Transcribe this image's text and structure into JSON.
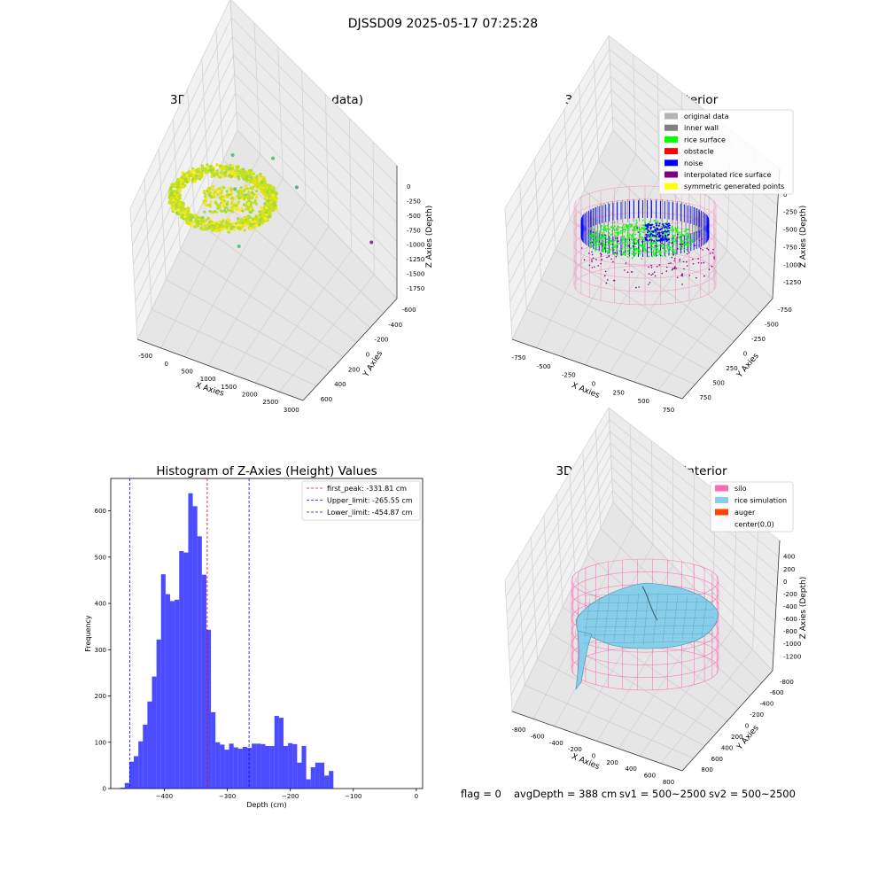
{
  "figure": {
    "suptitle": "DJSSD09 2025-05-17 07:25:28",
    "footer": {
      "flag": "flag = 0",
      "avg_depth": "avgDepth = 388 cm",
      "sv1": "sv1 = 500~2500",
      "sv2": "sv2 = 500~2500"
    }
  },
  "chart_data": [
    {
      "type": "scatter",
      "projection": "3d",
      "title": "3D Plot of Silo Interior(row data)",
      "xlabel": "X Axies",
      "ylabel": "Y Axies",
      "zlabel": "Z Axies (Depth)",
      "x_ticks": [
        "-500",
        "0",
        "500",
        "1000",
        "1500",
        "2000",
        "2500",
        "3000"
      ],
      "y_ticks": [
        "-600",
        "-400",
        "-200",
        "0",
        "200",
        "400",
        "600"
      ],
      "z_ticks": [
        "0",
        "-250",
        "-500",
        "-750",
        "-1000",
        "-1250",
        "-1500",
        "-1750"
      ],
      "xlim": [
        -600,
        3000
      ],
      "ylim": [
        -650,
        650
      ],
      "zlim": [
        -1800,
        0
      ],
      "colormap": "viridis",
      "main_cluster": {
        "description_color": "#c8e020"
      },
      "outliers": [
        {
          "x": 500,
          "y": 0,
          "z": -450,
          "color": "#5fc27d"
        },
        {
          "x": 700,
          "y": -100,
          "z": -650,
          "color": "#5fc27d"
        },
        {
          "x": 1200,
          "y": 100,
          "z": -550,
          "color": "#5fc27d"
        },
        {
          "x": 1100,
          "y": -300,
          "z": -900,
          "color": "#5fc27d"
        },
        {
          "x": 1500,
          "y": 200,
          "z": -1100,
          "color": "#4bb095"
        },
        {
          "x": 2900,
          "y": 300,
          "z": -1750,
          "color": "#7b4585"
        }
      ]
    },
    {
      "type": "scatter",
      "projection": "3d",
      "title": "3D classify of Silo Interior",
      "xlabel": "X Axies",
      "ylabel": "Y Axies",
      "zlabel": "Z Axies (Depth)",
      "x_ticks": [
        "-750",
        "-500",
        "-250",
        "0",
        "250",
        "500",
        "750"
      ],
      "y_ticks": [
        "-750",
        "-500",
        "-250",
        "0",
        "250",
        "500",
        "750"
      ],
      "z_ticks": [
        "0",
        "-250",
        "-500",
        "-750",
        "-1000",
        "-1250"
      ],
      "legend": {
        "position": "top-right",
        "entries": [
          {
            "label": "original data",
            "color": "#b3b3b3"
          },
          {
            "label": "inner wall",
            "color": "#7f7f7f"
          },
          {
            "label": "rice surface",
            "color": "#00ff00"
          },
          {
            "label": "obstacle",
            "color": "#ff0000"
          },
          {
            "label": "noise",
            "color": "#0000ff"
          },
          {
            "label": "interpolated rice surface",
            "color": "#800080"
          },
          {
            "label": "symmetric generated points",
            "color": "#ffff00"
          }
        ]
      }
    },
    {
      "type": "bar",
      "title": "Histogram of Z-Axies (Height) Values",
      "xlabel": "Depth (cm)",
      "ylabel": "Frequency",
      "xlim": [
        -485,
        10
      ],
      "ylim": [
        0,
        670
      ],
      "x_ticks": [
        -400,
        -300,
        -200,
        -100,
        0
      ],
      "y_ticks": [
        0,
        100,
        200,
        300,
        400,
        500,
        600
      ],
      "bar_color": "#0000ff",
      "bar_alpha": 0.7,
      "bin_start": -470,
      "bin_width": 7.2,
      "values": [
        2,
        12,
        58,
        70,
        102,
        138,
        188,
        242,
        322,
        463,
        420,
        405,
        408,
        513,
        510,
        638,
        610,
        545,
        462,
        343,
        165,
        100,
        95,
        84,
        97,
        89,
        86,
        90,
        88,
        97,
        97,
        96,
        92,
        92,
        157,
        153,
        92,
        98,
        96,
        56,
        92,
        20,
        46,
        56,
        56,
        28,
        38
      ],
      "vlines": [
        {
          "x": -331.81,
          "color": "#ff0000",
          "label": "first_peak: -331.81 cm"
        },
        {
          "x": -265.55,
          "color": "#0000ff",
          "label": "Upper_limit: -265.55 cm"
        },
        {
          "x": -454.87,
          "color": "#0000ff",
          "label": "Lower_limit: -454.87 cm"
        }
      ],
      "legend_position": "top-right"
    },
    {
      "type": "surface",
      "projection": "3d",
      "title": "3D simulation of Silo Interior",
      "xlabel": "X Axies",
      "ylabel": "Y Axies",
      "zlabel": "Z Axies (Depth)",
      "x_ticks": [
        "-800",
        "-600",
        "-400",
        "-200",
        "0",
        "200",
        "400",
        "600",
        "800"
      ],
      "y_ticks": [
        "-800",
        "-600",
        "-400",
        "-200",
        "0",
        "200",
        "400",
        "600",
        "800"
      ],
      "z_ticks": [
        "400",
        "200",
        "0",
        "-200",
        "-400",
        "-600",
        "-800",
        "-1000",
        "-1200"
      ],
      "legend": {
        "position": "top-right",
        "entries": [
          {
            "label": "silo",
            "color": "#ff69b4"
          },
          {
            "label": "rice simulation",
            "color": "#87ceeb"
          },
          {
            "label": "auger",
            "color": "#ff4500"
          },
          {
            "label": "center(0,0)",
            "color": ""
          }
        ]
      }
    }
  ]
}
